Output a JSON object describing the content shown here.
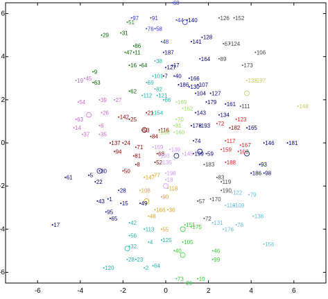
{
  "chart_data": {
    "type": "scatter",
    "title": "",
    "xlabel": "",
    "ylabel": "",
    "xlim": [
      -7.5,
      7.5
    ],
    "ylim": [
      -6.5,
      6.5
    ],
    "x_ticks": [
      -6,
      -4,
      -2,
      0,
      2,
      4,
      6
    ],
    "y_ticks": [
      -6,
      -4,
      -2,
      0,
      2,
      4,
      6
    ],
    "x_tick_labels": [
      "-6",
      "-4",
      "-2",
      "0",
      "2",
      "4",
      "6"
    ],
    "y_tick_labels": [
      "-6",
      "-4",
      "-2",
      "0",
      "2",
      "4",
      "6"
    ],
    "grid": false,
    "legend": "none",
    "points": [
      {
        "label": "60",
        "x": 0.3,
        "y": 6.5,
        "color": "#3333dd"
      },
      {
        "label": "97",
        "x": -1.6,
        "y": 5.8,
        "color": "#3333dd"
      },
      {
        "label": "91",
        "x": -0.7,
        "y": 5.8,
        "color": "#3333dd"
      },
      {
        "label": "44",
        "x": 0.5,
        "y": 5.7,
        "color": "#3333dd"
      },
      {
        "label": "140",
        "x": 1.0,
        "y": 5.7,
        "color": "#000080"
      },
      {
        "label": "126",
        "x": 2.5,
        "y": 5.8,
        "color": "#444444"
      },
      {
        "label": "152",
        "x": 3.2,
        "y": 5.8,
        "color": "#444444"
      },
      {
        "label": "51",
        "x": -1.8,
        "y": 5.6,
        "color": "#228b22"
      },
      {
        "label": "76",
        "x": -0.9,
        "y": 5.3,
        "color": "#3333dd"
      },
      {
        "label": "58",
        "x": -0.5,
        "y": 5.3,
        "color": "#3333dd"
      },
      {
        "label": "29",
        "x": -3.0,
        "y": 5.0,
        "color": "#006400"
      },
      {
        "label": "31",
        "x": -2.1,
        "y": 5.1,
        "color": "#006400"
      },
      {
        "label": "48",
        "x": -0.2,
        "y": 4.7,
        "color": "#3333dd"
      },
      {
        "label": "141",
        "x": 1.2,
        "y": 4.7,
        "color": "#000080"
      },
      {
        "label": "128",
        "x": 1.7,
        "y": 4.9,
        "color": "#000080"
      },
      {
        "label": "67",
        "x": 2.7,
        "y": 4.6,
        "color": "#444444"
      },
      {
        "label": "124",
        "x": 3.0,
        "y": 4.6,
        "color": "#444444"
      },
      {
        "label": "86",
        "x": -1.5,
        "y": 4.5,
        "color": "#006400"
      },
      {
        "label": "47",
        "x": -1.9,
        "y": 4.2,
        "color": "#006400"
      },
      {
        "label": "11",
        "x": -1.5,
        "y": 4.2,
        "color": "#006400"
      },
      {
        "label": "187",
        "x": -0.1,
        "y": 4.2,
        "color": "#000080"
      },
      {
        "label": "106",
        "x": 4.2,
        "y": 4.2,
        "color": "#444444"
      },
      {
        "label": "164",
        "x": 1.6,
        "y": 3.9,
        "color": "#000080"
      },
      {
        "label": "89",
        "x": 2.5,
        "y": 3.9,
        "color": "#444444"
      },
      {
        "label": "38",
        "x": -0.5,
        "y": 3.8,
        "color": "#20b2aa"
      },
      {
        "label": "16",
        "x": -1.7,
        "y": 3.6,
        "color": "#006400"
      },
      {
        "label": "64",
        "x": -1.2,
        "y": 3.6,
        "color": "#006400"
      },
      {
        "label": "173",
        "x": 3.6,
        "y": 3.6,
        "color": "#444444"
      },
      {
        "label": "9",
        "x": -3.4,
        "y": 3.3,
        "color": "#006400"
      },
      {
        "label": "127",
        "x": 0.0,
        "y": 3.5,
        "color": "#000080"
      },
      {
        "label": "17",
        "x": 0.3,
        "y": 3.6,
        "color": "#000080"
      },
      {
        "label": "101",
        "x": -0.6,
        "y": 3.1,
        "color": "#20b2aa"
      },
      {
        "label": "7",
        "x": -0.1,
        "y": 3.1,
        "color": "#000080"
      },
      {
        "label": "40",
        "x": 0.4,
        "y": 3.1,
        "color": "#000080"
      },
      {
        "label": "166",
        "x": 1.1,
        "y": 3.0,
        "color": "#000080"
      },
      {
        "label": "19",
        "x": -4.2,
        "y": 2.9,
        "color": "#cc66cc"
      },
      {
        "label": "45",
        "x": -3.8,
        "y": 3.0,
        "color": "#cc66cc"
      },
      {
        "label": "63",
        "x": -3.4,
        "y": 2.8,
        "color": "#006400"
      },
      {
        "label": "69",
        "x": -0.9,
        "y": 2.8,
        "color": "#20b2aa"
      },
      {
        "label": "82",
        "x": -0.5,
        "y": 2.5,
        "color": "#20b2aa"
      },
      {
        "label": "186",
        "x": 0.6,
        "y": 2.7,
        "color": "#000080"
      },
      {
        "label": "130",
        "x": 1.1,
        "y": 2.6,
        "color": "#000080"
      },
      {
        "label": "107",
        "x": 1.5,
        "y": 2.7,
        "color": "#000080"
      },
      {
        "label": "133",
        "x": 3.8,
        "y": 2.9,
        "color": "#c8c864"
      },
      {
        "label": "197",
        "x": 4.2,
        "y": 2.9,
        "color": "#c8c864"
      },
      {
        "label": "62",
        "x": -1.7,
        "y": 2.4,
        "color": "#006400"
      },
      {
        "label": "112",
        "x": -1.1,
        "y": 2.2,
        "color": "#20b2aa"
      },
      {
        "label": "121",
        "x": -0.4,
        "y": 2.2,
        "color": "#20b2aa"
      },
      {
        "label": "104",
        "x": 1.4,
        "y": 2.3,
        "color": "#000080"
      },
      {
        "label": "127",
        "x": 2.1,
        "y": 2.3,
        "color": "#000080"
      },
      {
        "label": "54",
        "x": -4.1,
        "y": 1.9,
        "color": "#cc66cc"
      },
      {
        "label": "39",
        "x": -3.1,
        "y": 2.0,
        "color": "#cc66cc"
      },
      {
        "label": "27",
        "x": -2.4,
        "y": 2.0,
        "color": "#cc66cc"
      },
      {
        "label": "66",
        "x": -0.1,
        "y": 2.0,
        "color": "#20b2aa"
      },
      {
        "label": "169",
        "x": 0.5,
        "y": 1.9,
        "color": "#99dd66"
      },
      {
        "label": "179",
        "x": 1.9,
        "y": 1.9,
        "color": "#000080"
      },
      {
        "label": "161",
        "x": 2.8,
        "y": 1.8,
        "color": "#000080"
      },
      {
        "label": "111",
        "x": 3.5,
        "y": 1.7,
        "color": "#444444"
      },
      {
        "label": "148",
        "x": 6.2,
        "y": 1.7,
        "color": "#c8c864"
      },
      {
        "label": "154",
        "x": -0.6,
        "y": 1.4,
        "color": "#20b2aa"
      },
      {
        "label": "162",
        "x": 0.8,
        "y": 1.6,
        "color": "#99dd66"
      },
      {
        "label": "143",
        "x": 1.4,
        "y": 1.4,
        "color": "#000080"
      },
      {
        "label": "134",
        "x": 2.5,
        "y": 1.3,
        "color": "#000080"
      },
      {
        "label": "63",
        "x": -4.2,
        "y": 1.1,
        "color": "#cc66cc"
      },
      {
        "label": "26",
        "x": -3.0,
        "y": 1.4,
        "color": "#cc66cc"
      },
      {
        "label": "142",
        "x": -2.2,
        "y": 1.2,
        "color": "#8b0000"
      },
      {
        "label": "25",
        "x": -1.7,
        "y": 1.1,
        "color": "#8b0000"
      },
      {
        "label": "21",
        "x": -0.9,
        "y": 1.4,
        "color": "#8b0000"
      },
      {
        "label": "70",
        "x": 0.5,
        "y": 1.1,
        "color": "#99dd66"
      },
      {
        "label": "123",
        "x": 3.3,
        "y": 1.1,
        "color": "#dd2222"
      },
      {
        "label": "14",
        "x": -4.3,
        "y": 0.7,
        "color": "#cc66cc"
      },
      {
        "label": "6",
        "x": -3.1,
        "y": 0.8,
        "color": "#cc66cc"
      },
      {
        "label": "178",
        "x": 1.2,
        "y": 0.8,
        "color": "#000080"
      },
      {
        "label": "193",
        "x": 1.6,
        "y": 0.8,
        "color": "#000080"
      },
      {
        "label": "72",
        "x": 2.4,
        "y": 0.9,
        "color": "#dd2222"
      },
      {
        "label": "182",
        "x": 3.0,
        "y": 0.7,
        "color": "#8b0000"
      },
      {
        "label": "165",
        "x": 3.8,
        "y": 0.7,
        "color": "#000080"
      },
      {
        "label": "81",
        "x": 0.4,
        "y": 0.8,
        "color": "#99dd66"
      },
      {
        "label": "53",
        "x": -1.1,
        "y": 0.6,
        "color": "#8b0000"
      },
      {
        "label": "116",
        "x": -0.3,
        "y": 0.6,
        "color": "#8b0000"
      },
      {
        "label": "37",
        "x": -3.9,
        "y": 0.4,
        "color": "#cc66cc"
      },
      {
        "label": "35",
        "x": -3.1,
        "y": 0.4,
        "color": "#cc66cc"
      },
      {
        "label": "130",
        "x": -0.3,
        "y": 0.5,
        "color": "#99dd66"
      },
      {
        "label": "84",
        "x": -0.7,
        "y": 0.3,
        "color": "#8b0000"
      },
      {
        "label": "160",
        "x": 0.4,
        "y": 0.5,
        "color": "#99dd66"
      },
      {
        "label": "117",
        "x": 2.8,
        "y": 0.1,
        "color": "#dd2222"
      },
      {
        "label": "146",
        "x": 4.6,
        "y": 0.0,
        "color": "#000080"
      },
      {
        "label": "181",
        "x": 5.7,
        "y": 0.0,
        "color": "#000080"
      },
      {
        "label": "137",
        "x": -2.6,
        "y": 0.0,
        "color": "#8b0000"
      },
      {
        "label": "24",
        "x": -2.0,
        "y": 0.0,
        "color": "#8b0000"
      },
      {
        "label": "74",
        "x": 1.3,
        "y": 0.1,
        "color": "#000080"
      },
      {
        "label": "167",
        "x": 3.5,
        "y": -0.1,
        "color": "#dd2222"
      },
      {
        "label": "94",
        "x": -2.4,
        "y": -0.4,
        "color": "#8b0000"
      },
      {
        "label": "71",
        "x": -1.4,
        "y": -0.2,
        "color": "#8b0000"
      },
      {
        "label": "159",
        "x": -0.6,
        "y": -0.2,
        "color": "#cc99ff"
      },
      {
        "label": "139",
        "x": 0.2,
        "y": -0.3,
        "color": "#cc99ff"
      },
      {
        "label": "159",
        "x": 2.6,
        "y": -0.3,
        "color": "#dd2222"
      },
      {
        "label": "102",
        "x": 3.4,
        "y": -0.4,
        "color": "#dd2222"
      },
      {
        "label": "81",
        "x": -1.5,
        "y": -0.6,
        "color": "#8b0000"
      },
      {
        "label": "68",
        "x": -0.4,
        "y": -0.5,
        "color": "#8b0000"
      },
      {
        "label": "193",
        "x": -0.3,
        "y": -0.6,
        "color": "#cc99ff"
      },
      {
        "label": "145",
        "x": 0.8,
        "y": -0.5,
        "color": "#cc99ff"
      },
      {
        "label": "199",
        "x": 1.3,
        "y": -0.5,
        "color": "#000080"
      },
      {
        "label": "59",
        "x": 1.9,
        "y": -0.5,
        "color": "#000080"
      },
      {
        "label": "8",
        "x": -1.4,
        "y": -1.0,
        "color": "#8b0000"
      },
      {
        "label": "52",
        "x": -0.5,
        "y": -0.9,
        "color": "#8b0000"
      },
      {
        "label": "135",
        "x": -0.2,
        "y": -0.9,
        "color": "#cc99ff"
      },
      {
        "label": "183",
        "x": 1.8,
        "y": -1.0,
        "color": "#444444"
      },
      {
        "label": "188",
        "x": 2.8,
        "y": -0.9,
        "color": "#dd2222"
      },
      {
        "label": "93",
        "x": 4.4,
        "y": -1.0,
        "color": "#000080"
      },
      {
        "label": "30",
        "x": -3.1,
        "y": -1.3,
        "color": "#000080"
      },
      {
        "label": "50",
        "x": -2.0,
        "y": -1.3,
        "color": "#8b0000"
      },
      {
        "label": "77",
        "x": -0.6,
        "y": -1.5,
        "color": "#daa520"
      },
      {
        "label": "198",
        "x": 0.0,
        "y": -1.4,
        "color": "#cc99ff"
      },
      {
        "label": "186",
        "x": 4.0,
        "y": -1.4,
        "color": "#000080"
      },
      {
        "label": "98",
        "x": 4.6,
        "y": -1.4,
        "color": "#000080"
      },
      {
        "label": "61",
        "x": -4.7,
        "y": -1.6,
        "color": "#000080"
      },
      {
        "label": "5",
        "x": -3.6,
        "y": -1.5,
        "color": "#000080"
      },
      {
        "label": "147",
        "x": -1.0,
        "y": -1.6,
        "color": "#daa520"
      },
      {
        "label": "18",
        "x": 0.0,
        "y": -1.7,
        "color": "#cc99ff"
      },
      {
        "label": "83",
        "x": 2.4,
        "y": -1.6,
        "color": "#444444"
      },
      {
        "label": "22",
        "x": -3.3,
        "y": -1.8,
        "color": "#000080"
      },
      {
        "label": "119",
        "x": 2.6,
        "y": -1.8,
        "color": "#444444"
      },
      {
        "label": "28",
        "x": -2.2,
        "y": -2.2,
        "color": "#000080"
      },
      {
        "label": "108",
        "x": -1.2,
        "y": -2.2,
        "color": "#daa520"
      },
      {
        "label": "118",
        "x": 0.1,
        "y": -2.1,
        "color": "#daa520"
      },
      {
        "label": "190",
        "x": 2.6,
        "y": -2.2,
        "color": "#444444"
      },
      {
        "label": "122",
        "x": 3.1,
        "y": -2.3,
        "color": "#66bbdd"
      },
      {
        "label": "79",
        "x": 3.9,
        "y": -2.4,
        "color": "#66bbdd"
      },
      {
        "label": "43",
        "x": -3.2,
        "y": -2.7,
        "color": "#000080"
      },
      {
        "label": "1",
        "x": -2.7,
        "y": -2.6,
        "color": "#000080"
      },
      {
        "label": "90",
        "x": -0.2,
        "y": -2.5,
        "color": "#daa520"
      },
      {
        "label": "57",
        "x": 1.5,
        "y": -2.7,
        "color": "#444444"
      },
      {
        "label": "170",
        "x": 2.1,
        "y": -2.6,
        "color": "#444444"
      },
      {
        "label": "15",
        "x": -2.1,
        "y": -2.8,
        "color": "#000080"
      },
      {
        "label": "49",
        "x": -1.2,
        "y": -2.8,
        "color": "#000080"
      },
      {
        "label": "116",
        "x": 2.8,
        "y": -2.9,
        "color": "#66bbdd"
      },
      {
        "label": "108",
        "x": 3.2,
        "y": -2.9,
        "color": "#66bbdd"
      },
      {
        "label": "95",
        "x": -2.8,
        "y": -3.2,
        "color": "#000080"
      },
      {
        "label": "166",
        "x": -0.5,
        "y": -3.1,
        "color": "#daa520"
      },
      {
        "label": "36",
        "x": 0.1,
        "y": -3.1,
        "color": "#daa520"
      },
      {
        "label": "138",
        "x": 4.1,
        "y": -3.4,
        "color": "#66bbdd"
      },
      {
        "label": "65",
        "x": -2.6,
        "y": -3.5,
        "color": "#000080"
      },
      {
        "label": "48",
        "x": -0.8,
        "y": -3.4,
        "color": "#daa520"
      },
      {
        "label": "72",
        "x": 1.8,
        "y": -3.5,
        "color": "#444444"
      },
      {
        "label": "17",
        "x": -5.3,
        "y": -3.8,
        "color": "#000080"
      },
      {
        "label": "42",
        "x": -1.7,
        "y": -3.7,
        "color": "#20b2aa"
      },
      {
        "label": "131",
        "x": 2.2,
        "y": -3.7,
        "color": "#66bbdd"
      },
      {
        "label": "78",
        "x": 3.3,
        "y": -3.8,
        "color": "#66bbdd"
      },
      {
        "label": "151",
        "x": 0.9,
        "y": -3.8,
        "color": "#32cd32"
      },
      {
        "label": "113",
        "x": -1.0,
        "y": -4.0,
        "color": "#20b2aa"
      },
      {
        "label": "55",
        "x": -0.2,
        "y": -4.0,
        "color": "#daa520"
      },
      {
        "label": "175",
        "x": 1.2,
        "y": -3.9,
        "color": "#32cd32"
      },
      {
        "label": "176",
        "x": 2.7,
        "y": -4.0,
        "color": "#66bbdd"
      },
      {
        "label": "56",
        "x": -1.7,
        "y": -4.3,
        "color": "#20b2aa"
      },
      {
        "label": "4",
        "x": -0.8,
        "y": -4.6,
        "color": "#20b2aa"
      },
      {
        "label": "125",
        "x": -0.2,
        "y": -4.5,
        "color": "#20b2aa"
      },
      {
        "label": "105",
        "x": 0.8,
        "y": -4.6,
        "color": "#32cd32"
      },
      {
        "label": "156",
        "x": 4.6,
        "y": -4.7,
        "color": "#66bbdd"
      },
      {
        "label": "32",
        "x": -1.7,
        "y": -4.8,
        "color": "#20b2aa"
      },
      {
        "label": "40",
        "x": 0.4,
        "y": -5.0,
        "color": "#32cd32"
      },
      {
        "label": "46",
        "x": 2.2,
        "y": -5.0,
        "color": "#32cd32"
      },
      {
        "label": "28",
        "x": -1.8,
        "y": -5.4,
        "color": "#20b2aa"
      },
      {
        "label": "23",
        "x": -1.4,
        "y": -5.4,
        "color": "#20b2aa"
      },
      {
        "label": "99",
        "x": 2.2,
        "y": -5.4,
        "color": "#32cd32"
      },
      {
        "label": "64",
        "x": -0.6,
        "y": -5.7,
        "color": "#20b2aa"
      },
      {
        "label": "120",
        "x": -2.9,
        "y": -5.8,
        "color": "#20b2aa"
      },
      {
        "label": "2",
        "x": -1.0,
        "y": -5.8,
        "color": "#20b2aa"
      },
      {
        "label": "73",
        "x": 0.5,
        "y": -6.3,
        "color": "#32cd32"
      },
      {
        "label": "10",
        "x": 1.5,
        "y": -6.3,
        "color": "#32cd32"
      },
      {
        "label": "20",
        "x": 0.9,
        "y": -6.5,
        "color": "#32cd32"
      }
    ],
    "circles": [
      {
        "x": 0.9,
        "y": 5.6,
        "color": "#3333dd"
      },
      {
        "x": -3.6,
        "y": 1.3,
        "color": "#cc66cc"
      },
      {
        "x": 3.8,
        "y": 2.3,
        "color": "#c8c864"
      },
      {
        "x": 0.0,
        "y": -2.0,
        "color": "#cc99ff"
      },
      {
        "x": 0.5,
        "y": -0.6,
        "color": "#000080"
      },
      {
        "x": -0.9,
        "y": -2.7,
        "color": "#daa520"
      },
      {
        "x": -3.1,
        "y": -1.3,
        "color": "#000080"
      },
      {
        "x": 3.8,
        "y": -0.5,
        "color": "#000080"
      },
      {
        "x": 0.8,
        "y": -4.0,
        "color": "#32cd32"
      },
      {
        "x": -1.8,
        "y": -4.9,
        "color": "#20b2aa"
      },
      {
        "x": 0.8,
        "y": -5.2,
        "color": "#32cd32"
      },
      {
        "x": 1.6,
        "y": -0.4,
        "color": "#000080"
      },
      {
        "x": -1.0,
        "y": 0.6,
        "color": "#8b0000"
      }
    ]
  }
}
